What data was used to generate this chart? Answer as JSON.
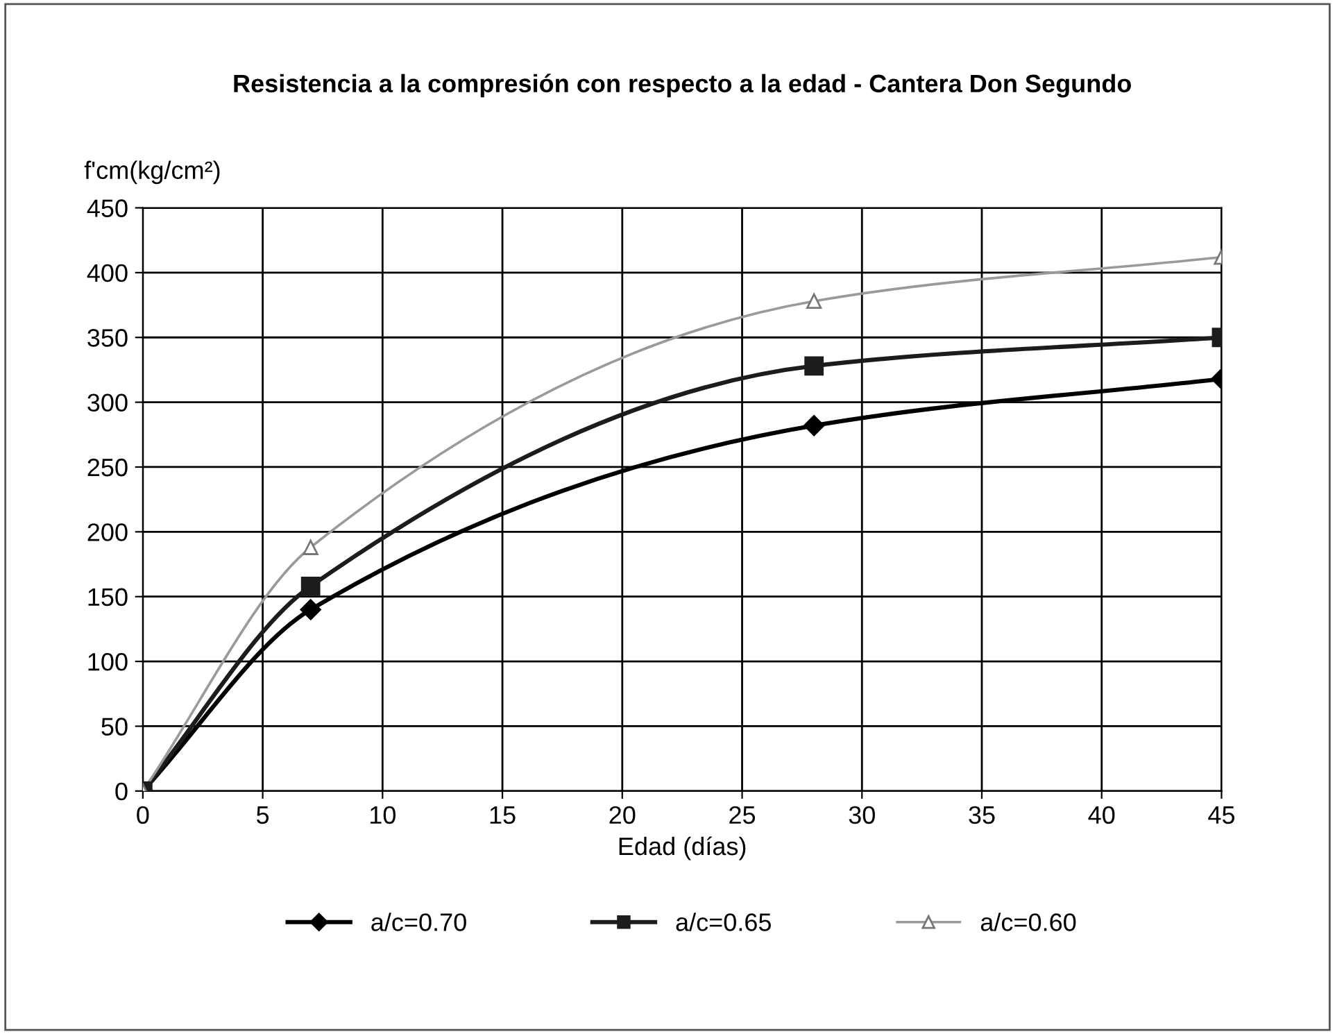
{
  "chart_data": {
    "type": "line",
    "title": "Resistencia a la compresión con respecto a la edad - Cantera Don Segundo",
    "xlabel": "Edad (días)",
    "ylabel": "f'cm(kg/cm²)",
    "x": [
      0,
      7,
      28,
      45
    ],
    "series": [
      {
        "name": "a/c=0.70",
        "color": "#000000",
        "marker": "diamond",
        "values": [
          0,
          140,
          282,
          318
        ]
      },
      {
        "name": "a/c=0.65",
        "color": "#1c1c1c",
        "marker": "square",
        "values": [
          0,
          158,
          328,
          350
        ]
      },
      {
        "name": "a/c=0.60",
        "color": "#9a9a9a",
        "marker": "triangle",
        "values": [
          0,
          188,
          378,
          412
        ]
      }
    ],
    "xlim": [
      0,
      45
    ],
    "xticks": [
      0,
      5,
      10,
      15,
      20,
      25,
      30,
      35,
      40,
      45
    ],
    "ylim": [
      0,
      450
    ],
    "yticks": [
      0,
      50,
      100,
      150,
      200,
      250,
      300,
      350,
      400,
      450
    ],
    "grid": true,
    "legend": "bottom",
    "line_style": "solid"
  }
}
